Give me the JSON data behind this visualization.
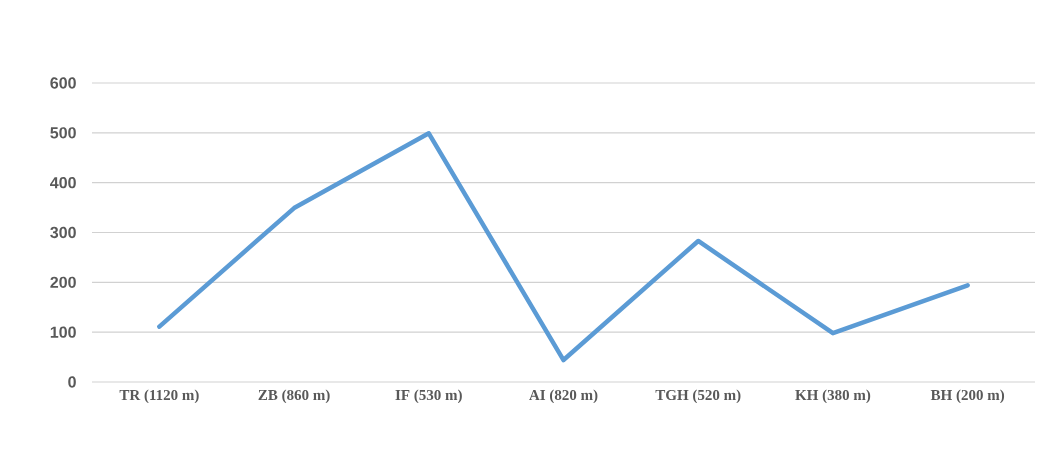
{
  "chart_data": {
    "type": "line",
    "categories": [
      "TR (1120 m)",
      "ZB (860 m)",
      "IF (530 m)",
      "AI (820 m)",
      "TGH (520 m)",
      "KH (380 m)",
      "BH (200 m)"
    ],
    "series": [
      {
        "color": "#5b9bd5",
        "values": [
          111,
          349,
          499,
          44,
          283,
          98,
          194
        ]
      }
    ],
    "ylim": [
      0,
      600
    ],
    "yticks": [
      0,
      100,
      200,
      300,
      400,
      500,
      600
    ],
    "grid": "y",
    "marker": "none",
    "line_style": "solid"
  }
}
